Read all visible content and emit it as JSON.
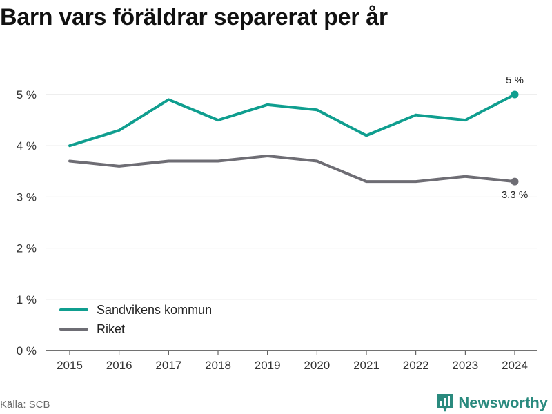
{
  "title": "Barn vars föräldrar separerat per år",
  "source": "Källa: SCB",
  "brand": {
    "name": "Newsworthy",
    "icon": "newsworthy-logo-icon",
    "color": "#2a8a7e"
  },
  "chart_data": {
    "type": "line",
    "title": "Barn vars föräldrar separerat per år",
    "x": [
      "2015",
      "2016",
      "2017",
      "2018",
      "2019",
      "2020",
      "2021",
      "2022",
      "2023",
      "2024"
    ],
    "ylim": [
      0,
      5.5
    ],
    "yticks": [
      0,
      1,
      2,
      3,
      4,
      5
    ],
    "ytick_labels": [
      "0 %",
      "1 %",
      "2 %",
      "3 %",
      "4 %",
      "5 %"
    ],
    "grid": true,
    "legend_placement": "bottom-left",
    "series": [
      {
        "name": "Sandvikens kommun",
        "color": "#0f9e8f",
        "values": [
          4.0,
          4.3,
          4.9,
          4.5,
          4.8,
          4.7,
          4.2,
          4.6,
          4.5,
          5.0
        ],
        "end_label": "5 %"
      },
      {
        "name": "Riket",
        "color": "#6e6d74",
        "values": [
          3.7,
          3.6,
          3.7,
          3.7,
          3.8,
          3.7,
          3.3,
          3.3,
          3.4,
          3.3
        ],
        "end_label": "3,3 %"
      }
    ]
  }
}
